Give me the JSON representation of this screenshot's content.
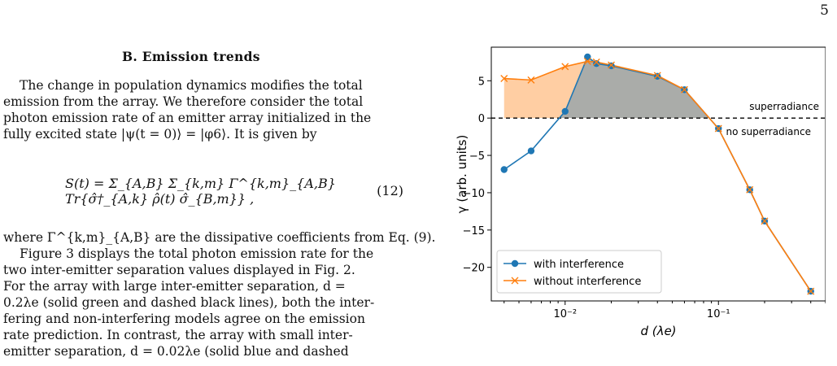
{
  "page_number": "5",
  "section": {
    "heading": "B.   Emission trends"
  },
  "paragraph1": [
    "The change in population dynamics modifies the total",
    "emission from the array. We therefore consider the total",
    "photon emission rate of an emitter array initialized in the",
    "fully excited state |ψ(t = 0)⟩ = |φ6⟩. It is given by"
  ],
  "equation": {
    "body": "S(t) = Σ_{A,B} Σ_{k,m} Γ^{k,m}_{A,B} Tr{σ̂†_{A,k} ρ̂(t) σ̂_{B,m}} ,",
    "number": "(12)"
  },
  "paragraph2": [
    "where Γ^{k,m}_{A,B} are the dissipative coefficients from Eq. (9).",
    "Figure 3 displays the total photon emission rate for the",
    "two inter-emitter separation values displayed in Fig. 2.",
    "For the array with large inter-emitter separation, d =",
    "0.2λe (solid green and dashed black lines), both the inter-",
    "fering and non-interfering models agree on the emission",
    "rate prediction. In contrast, the array with small inter-",
    "emitter separation, d = 0.02λe (solid blue and dashed"
  ],
  "chart_data": {
    "type": "line",
    "xscale": "log",
    "xlim": [
      0.0033,
      0.5
    ],
    "ylim": [
      -24.5,
      9.5
    ],
    "xlabel": "d (λe)",
    "ylabel": "γ (arb. units)",
    "yticks": [
      5,
      0,
      -5,
      -10,
      -15,
      -20
    ],
    "ytick_labels": [
      "5",
      "0",
      "−5",
      "−10",
      "−15",
      "−20"
    ],
    "xticks": [
      0.01,
      0.1
    ],
    "xtick_labels": [
      "10⁻²",
      "10⁻¹"
    ],
    "hline": {
      "y": 0,
      "style": "dashed",
      "label_above": "superradiance",
      "label_below": "no superradiance"
    },
    "legend_position": "lower-left",
    "series": [
      {
        "name": "with interference",
        "color": "#1f77b4",
        "marker": "circle",
        "x": [
          0.004,
          0.006,
          0.01,
          0.014,
          0.016,
          0.02,
          0.04,
          0.06,
          0.1,
          0.16,
          0.2,
          0.4
        ],
        "y": [
          -6.9,
          -4.4,
          0.9,
          8.2,
          7.3,
          7.0,
          5.6,
          3.8,
          -1.4,
          -9.6,
          -13.8,
          -23.2
        ]
      },
      {
        "name": "without interference",
        "color": "#ff7f0e",
        "marker": "x",
        "x": [
          0.004,
          0.006,
          0.01,
          0.014,
          0.016,
          0.02,
          0.04,
          0.06,
          0.1,
          0.16,
          0.2,
          0.4
        ],
        "y": [
          5.3,
          5.1,
          6.9,
          7.6,
          7.5,
          7.1,
          5.7,
          3.8,
          -1.4,
          -9.6,
          -13.8,
          -23.2
        ]
      }
    ]
  }
}
